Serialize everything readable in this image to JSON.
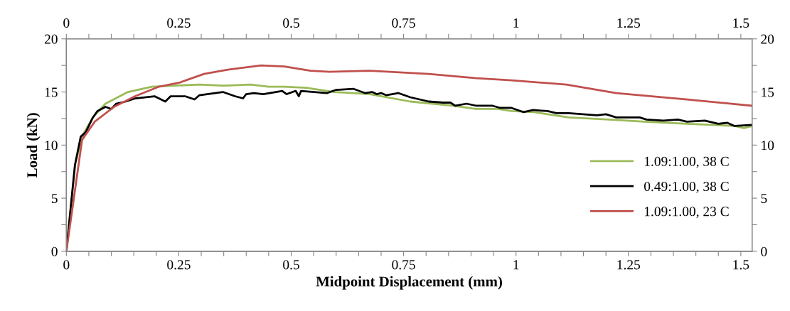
{
  "chart_data": {
    "type": "line",
    "xlabel": "Midpoint Displacement (mm)",
    "ylabel": "Load (kN)",
    "xlim": [
      0,
      1.525
    ],
    "ylim": [
      0,
      20
    ],
    "xticks": [
      0,
      {
        "value": 0.05,
        "label": null
      },
      {
        "value": 0.1,
        "label": null
      },
      {
        "value": 0.15,
        "label": null
      },
      {
        "value": 0.2,
        "label": null
      },
      0.25,
      {
        "value": 0.3,
        "label": null
      },
      {
        "value": 0.35,
        "label": null
      },
      {
        "value": 0.4,
        "label": null
      },
      {
        "value": 0.45,
        "label": null
      },
      0.5,
      {
        "value": 0.55,
        "label": null
      },
      {
        "value": 0.6,
        "label": null
      },
      {
        "value": 0.65,
        "label": null
      },
      {
        "value": 0.7,
        "label": null
      },
      0.75,
      {
        "value": 0.8,
        "label": null
      },
      {
        "value": 0.85,
        "label": null
      },
      {
        "value": 0.9,
        "label": null
      },
      {
        "value": 0.95,
        "label": null
      },
      1,
      {
        "value": 1.05,
        "label": null
      },
      {
        "value": 1.1,
        "label": null
      },
      {
        "value": 1.15,
        "label": null
      },
      {
        "value": 1.2,
        "label": null
      },
      1.25,
      {
        "value": 1.3,
        "label": null
      },
      {
        "value": 1.35,
        "label": null
      },
      {
        "value": 1.4,
        "label": null
      },
      {
        "value": 1.45,
        "label": null
      },
      1.5
    ],
    "x2lim": [
      0,
      1.525
    ],
    "x2ticks": [
      0,
      {
        "value": 0.05,
        "label": null
      },
      {
        "value": 0.1,
        "label": null
      },
      {
        "value": 0.15,
        "label": null
      },
      {
        "value": 0.2,
        "label": null
      },
      0.25,
      {
        "value": 0.3,
        "label": null
      },
      {
        "value": 0.35,
        "label": null
      },
      {
        "value": 0.4,
        "label": null
      },
      {
        "value": 0.45,
        "label": null
      },
      0.5,
      {
        "value": 0.55,
        "label": null
      },
      {
        "value": 0.6,
        "label": null
      },
      {
        "value": 0.65,
        "label": null
      },
      {
        "value": 0.7,
        "label": null
      },
      0.75,
      {
        "value": 0.8,
        "label": null
      },
      {
        "value": 0.85,
        "label": null
      },
      {
        "value": 0.9,
        "label": null
      },
      {
        "value": 0.95,
        "label": null
      },
      1,
      {
        "value": 1.05,
        "label": null
      },
      {
        "value": 1.1,
        "label": null
      },
      {
        "value": 1.15,
        "label": null
      },
      {
        "value": 1.2,
        "label": null
      },
      1.25,
      {
        "value": 1.3,
        "label": null
      },
      {
        "value": 1.35,
        "label": null
      },
      {
        "value": 1.4,
        "label": null
      },
      {
        "value": 1.45,
        "label": null
      },
      1.5
    ],
    "yticks": [
      0,
      {
        "value": 2.5,
        "label": null
      },
      5,
      {
        "value": 7.5,
        "label": null
      },
      10,
      {
        "value": 12.5,
        "label": null
      },
      15,
      {
        "value": 17.5,
        "label": null
      },
      20
    ],
    "y2lim": [
      0,
      20
    ],
    "y2ticks": [
      0,
      {
        "value": 2.5,
        "label": null
      },
      5,
      {
        "value": 7.5,
        "label": null
      },
      10,
      {
        "value": 12.5,
        "label": null
      },
      15,
      {
        "value": 17.5,
        "label": null
      },
      20
    ],
    "grid": false,
    "legend": "right",
    "marker": "none",
    "line_style": "solid",
    "series": [
      {
        "name": "1.09:1.00, 38 C",
        "color": "#9bbb59",
        "x": [
          0,
          0.02,
          0.037,
          0.059,
          0.087,
          0.137,
          0.19,
          0.296,
          0.35,
          0.41,
          0.45,
          0.485,
          0.533,
          0.596,
          0.675,
          0.765,
          0.86,
          0.91,
          0.96,
          0.99,
          1.04,
          1.117,
          1.207,
          1.286,
          1.381,
          1.486,
          1.507,
          1.525
        ],
        "values": [
          0,
          8.3,
          11.0,
          12.6,
          13.9,
          15.0,
          15.5,
          15.7,
          15.6,
          15.7,
          15.5,
          15.5,
          15.4,
          15.0,
          14.8,
          14.1,
          13.7,
          13.4,
          13.4,
          13.2,
          13.1,
          12.6,
          12.4,
          12.2,
          12.0,
          11.8,
          11.6,
          11.8
        ]
      },
      {
        "name": "0.49:1.00, 38 C",
        "color": "#000000",
        "x": [
          0,
          0.019,
          0.032,
          0.043,
          0.059,
          0.069,
          0.087,
          0.1,
          0.111,
          0.132,
          0.153,
          0.196,
          0.22,
          0.232,
          0.264,
          0.285,
          0.296,
          0.348,
          0.375,
          0.393,
          0.4,
          0.417,
          0.438,
          0.48,
          0.49,
          0.51,
          0.517,
          0.522,
          0.58,
          0.6,
          0.638,
          0.664,
          0.68,
          0.69,
          0.7,
          0.711,
          0.738,
          0.765,
          0.806,
          0.838,
          0.854,
          0.865,
          0.89,
          0.912,
          0.948,
          0.965,
          0.99,
          1.017,
          1.038,
          1.07,
          1.09,
          1.117,
          1.18,
          1.2,
          1.223,
          1.275,
          1.29,
          1.328,
          1.36,
          1.38,
          1.42,
          1.45,
          1.47,
          1.486,
          1.525
        ],
        "values": [
          0,
          8.1,
          10.8,
          11.2,
          12.6,
          13.2,
          13.6,
          13.4,
          13.9,
          14.1,
          14.4,
          14.6,
          14.1,
          14.6,
          14.6,
          14.3,
          14.7,
          15.0,
          14.6,
          14.4,
          14.8,
          14.9,
          14.8,
          15.1,
          14.8,
          15.1,
          14.6,
          15.1,
          14.9,
          15.2,
          15.3,
          14.9,
          15.0,
          14.8,
          14.9,
          14.7,
          14.9,
          14.5,
          14.1,
          14.0,
          14.0,
          13.7,
          13.9,
          13.7,
          13.7,
          13.5,
          13.5,
          13.1,
          13.3,
          13.2,
          13.0,
          13.0,
          12.8,
          12.9,
          12.6,
          12.6,
          12.4,
          12.3,
          12.4,
          12.2,
          12.3,
          12.0,
          12.1,
          11.8,
          11.9
        ]
      },
      {
        "name": "1.09:1.00, 23 C",
        "color": "#c0504d",
        "x": [
          0,
          0.035,
          0.063,
          0.106,
          0.153,
          0.206,
          0.253,
          0.306,
          0.359,
          0.433,
          0.485,
          0.543,
          0.585,
          0.675,
          0.806,
          0.912,
          0.99,
          1.112,
          1.223,
          1.381,
          1.525
        ],
        "values": [
          0,
          10.5,
          12.2,
          13.6,
          14.6,
          15.5,
          15.9,
          16.7,
          17.1,
          17.5,
          17.4,
          17.0,
          16.9,
          17.0,
          16.7,
          16.3,
          16.1,
          15.7,
          14.9,
          14.3,
          13.7
        ]
      }
    ]
  }
}
